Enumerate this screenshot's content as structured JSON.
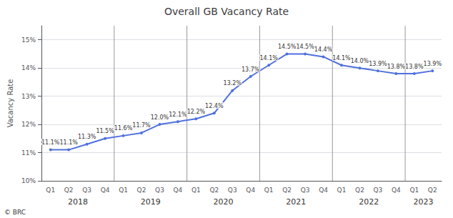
{
  "chart_data": {
    "type": "line",
    "title": "Overall GB Vacancy Rate",
    "ylabel": "Vacancy Rate",
    "categories": [
      "Q1",
      "Q2",
      "Q3",
      "Q4",
      "Q1",
      "Q2",
      "Q3",
      "Q4",
      "Q1",
      "Q2",
      "Q3",
      "Q4",
      "Q1",
      "Q2",
      "Q3",
      "Q4",
      "Q1",
      "Q2",
      "Q3",
      "Q4",
      "Q1",
      "Q2"
    ],
    "values": [
      11.1,
      11.1,
      11.3,
      11.5,
      11.6,
      11.7,
      12.0,
      12.1,
      12.2,
      12.4,
      13.2,
      13.7,
      14.1,
      14.5,
      14.5,
      14.4,
      14.1,
      14.0,
      13.9,
      13.8,
      13.8,
      13.9
    ],
    "value_labels": [
      "11.1%",
      "11.1%",
      "11.3%",
      "11.5%",
      "11.6%",
      "11.7%",
      "12.0%",
      "12.1%",
      "12.2%",
      "12.4%",
      "13.2%",
      "13.7%",
      "14.1%",
      "14.5%",
      "14.5%",
      "14.4%",
      "14.1%",
      "14.0%",
      "13.9%",
      "13.8%",
      "13.8%",
      "13.9%"
    ],
    "data_labels": true,
    "ylim": [
      10.0,
      15.5
    ],
    "yticks": [
      {
        "value": 10,
        "label": "10%"
      },
      {
        "value": 11,
        "label": "11%"
      },
      {
        "value": 12,
        "label": "12%"
      },
      {
        "value": 13,
        "label": "13%"
      },
      {
        "value": 14,
        "label": "14%"
      },
      {
        "value": 15,
        "label": "15%"
      }
    ],
    "grid": true,
    "annotations": [
      {
        "text": "2018",
        "span": [
          0,
          3
        ]
      },
      {
        "text": "2019",
        "span": [
          4,
          7
        ]
      },
      {
        "text": "2020",
        "span": [
          8,
          11
        ]
      },
      {
        "text": "2021",
        "span": [
          12,
          15
        ]
      },
      {
        "text": "2022",
        "span": [
          16,
          19
        ]
      },
      {
        "text": "2023",
        "span": [
          20,
          21
        ]
      },
      {
        "text": "© BRC"
      }
    ]
  }
}
